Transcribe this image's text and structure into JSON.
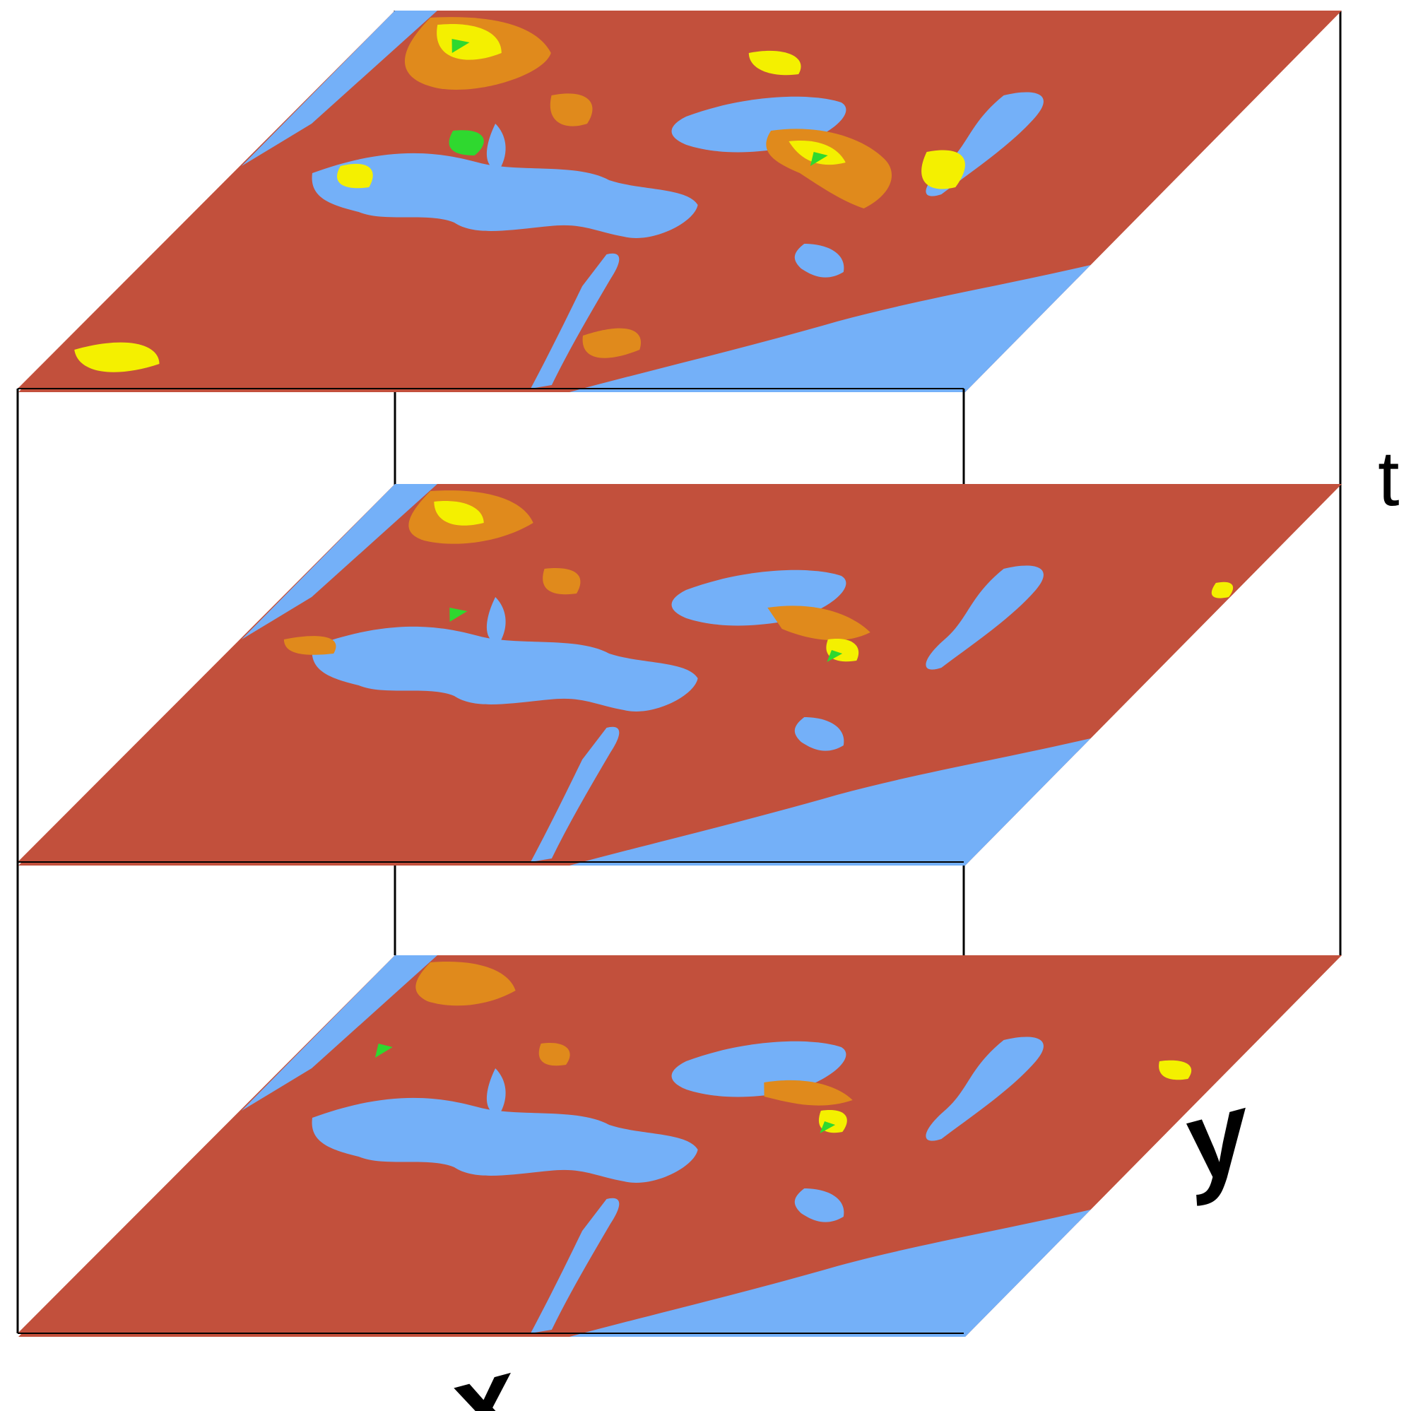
{
  "axes": {
    "t_label": "t",
    "x_label": "x",
    "y_label": "y"
  },
  "colors": {
    "land_bare": "#C2503C",
    "water": "#74B0F8",
    "sparse_veg": "#E08A1C",
    "moderate_veg": "#F4F000",
    "dense_veg": "#2FD82F",
    "frame": "#000000"
  },
  "layers": [
    {
      "id": "top",
      "description_key": "time-slice-1",
      "green_level": 0.06,
      "yellow_level": 0.1
    },
    {
      "id": "middle",
      "description_key": "time-slice-2",
      "green_level": 0.03,
      "yellow_level": 0.04
    },
    {
      "id": "bottom",
      "description_key": "time-slice-3",
      "green_level": 0.02,
      "yellow_level": 0.02
    }
  ]
}
